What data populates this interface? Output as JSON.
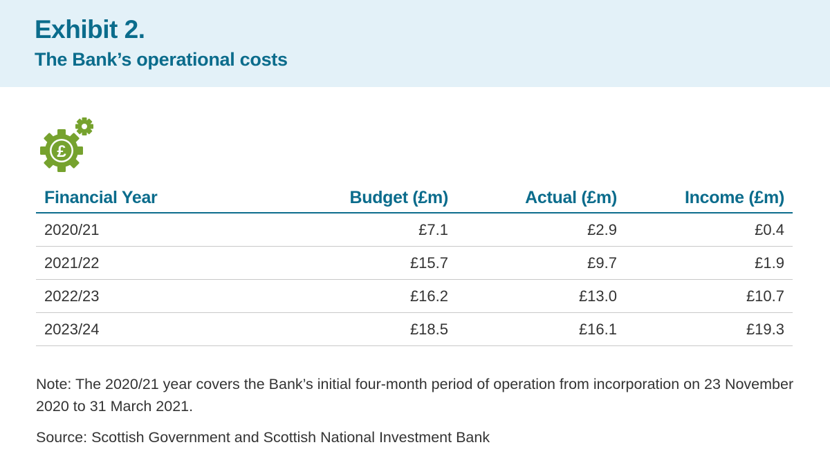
{
  "header": {
    "exhibit": "Exhibit 2.",
    "title": "The Bank’s operational costs"
  },
  "icon": {
    "name": "pound-gears-icon",
    "color": "#76a22e"
  },
  "table": {
    "headers": [
      "Financial Year",
      "Budget (£m)",
      "Actual (£m)",
      "Income (£m)"
    ],
    "rows": [
      [
        "2020/21",
        "£7.1",
        "£2.9",
        "£0.4"
      ],
      [
        "2021/22",
        "£15.7",
        "£9.7",
        "£1.9"
      ],
      [
        "2022/23",
        "£16.2",
        "£13.0",
        "£10.7"
      ],
      [
        "2023/24",
        "£18.5",
        "£16.1",
        "£19.3"
      ]
    ]
  },
  "note": "Note: The 2020/21 year covers the Bank’s initial four-month period of operation from incorporation on 23 November 2020 to 31 March 2021.",
  "source": "Source: Scottish Government and Scottish National Investment Bank",
  "colors": {
    "heading": "#0b6c8c",
    "header_bg": "#e3f1f8",
    "icon": "#76a22e",
    "rule": "#c8c8c8"
  }
}
